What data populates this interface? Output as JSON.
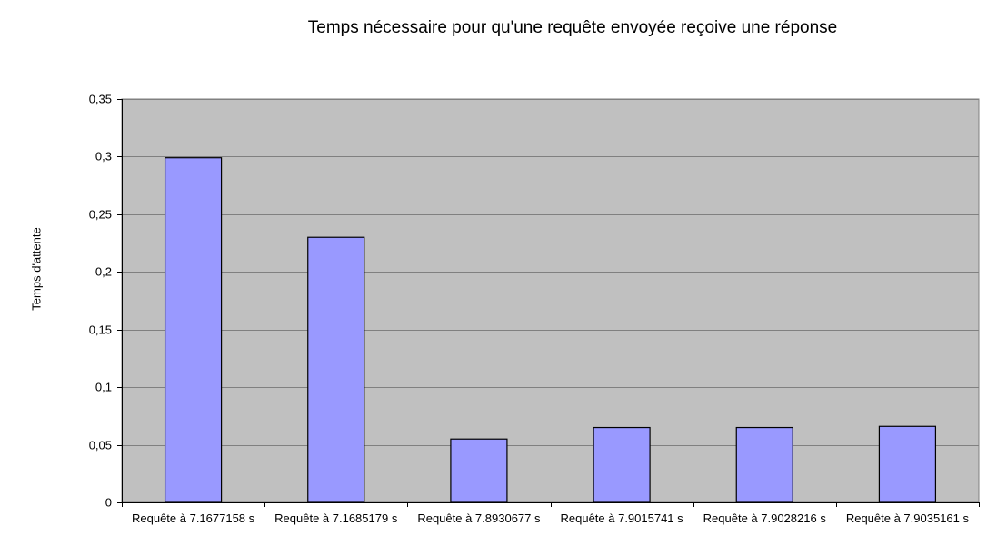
{
  "chart_data": {
    "type": "bar",
    "title": "Temps nécessaire pour qu'une requête envoyée reçoive une réponse",
    "xlabel": "",
    "ylabel": "Temps d'attente",
    "categories": [
      "Requête à 7.1677158 s",
      "Requête à 7.1685179 s",
      "Requête à 7.8930677 s",
      "Requête à 7.9015741 s",
      "Requête à 7.9028216 s",
      "Requête à 7.9035161 s"
    ],
    "values": [
      0.299,
      0.23,
      0.055,
      0.065,
      0.065,
      0.066
    ],
    "ylim": [
      0,
      0.35
    ],
    "yticks": [
      0,
      0.05,
      0.1,
      0.15,
      0.2,
      0.25,
      0.3,
      0.35
    ],
    "ytick_labels": [
      "0",
      "0,05",
      "0,1",
      "0,15",
      "0,2",
      "0,25",
      "0,3",
      "0,35"
    ],
    "grid": true,
    "legend": "none",
    "colors": {
      "bar_fill": "#9999ff",
      "bar_stroke": "#000000",
      "plot_background": "#c0c0c0",
      "gridline": "#808080"
    }
  }
}
